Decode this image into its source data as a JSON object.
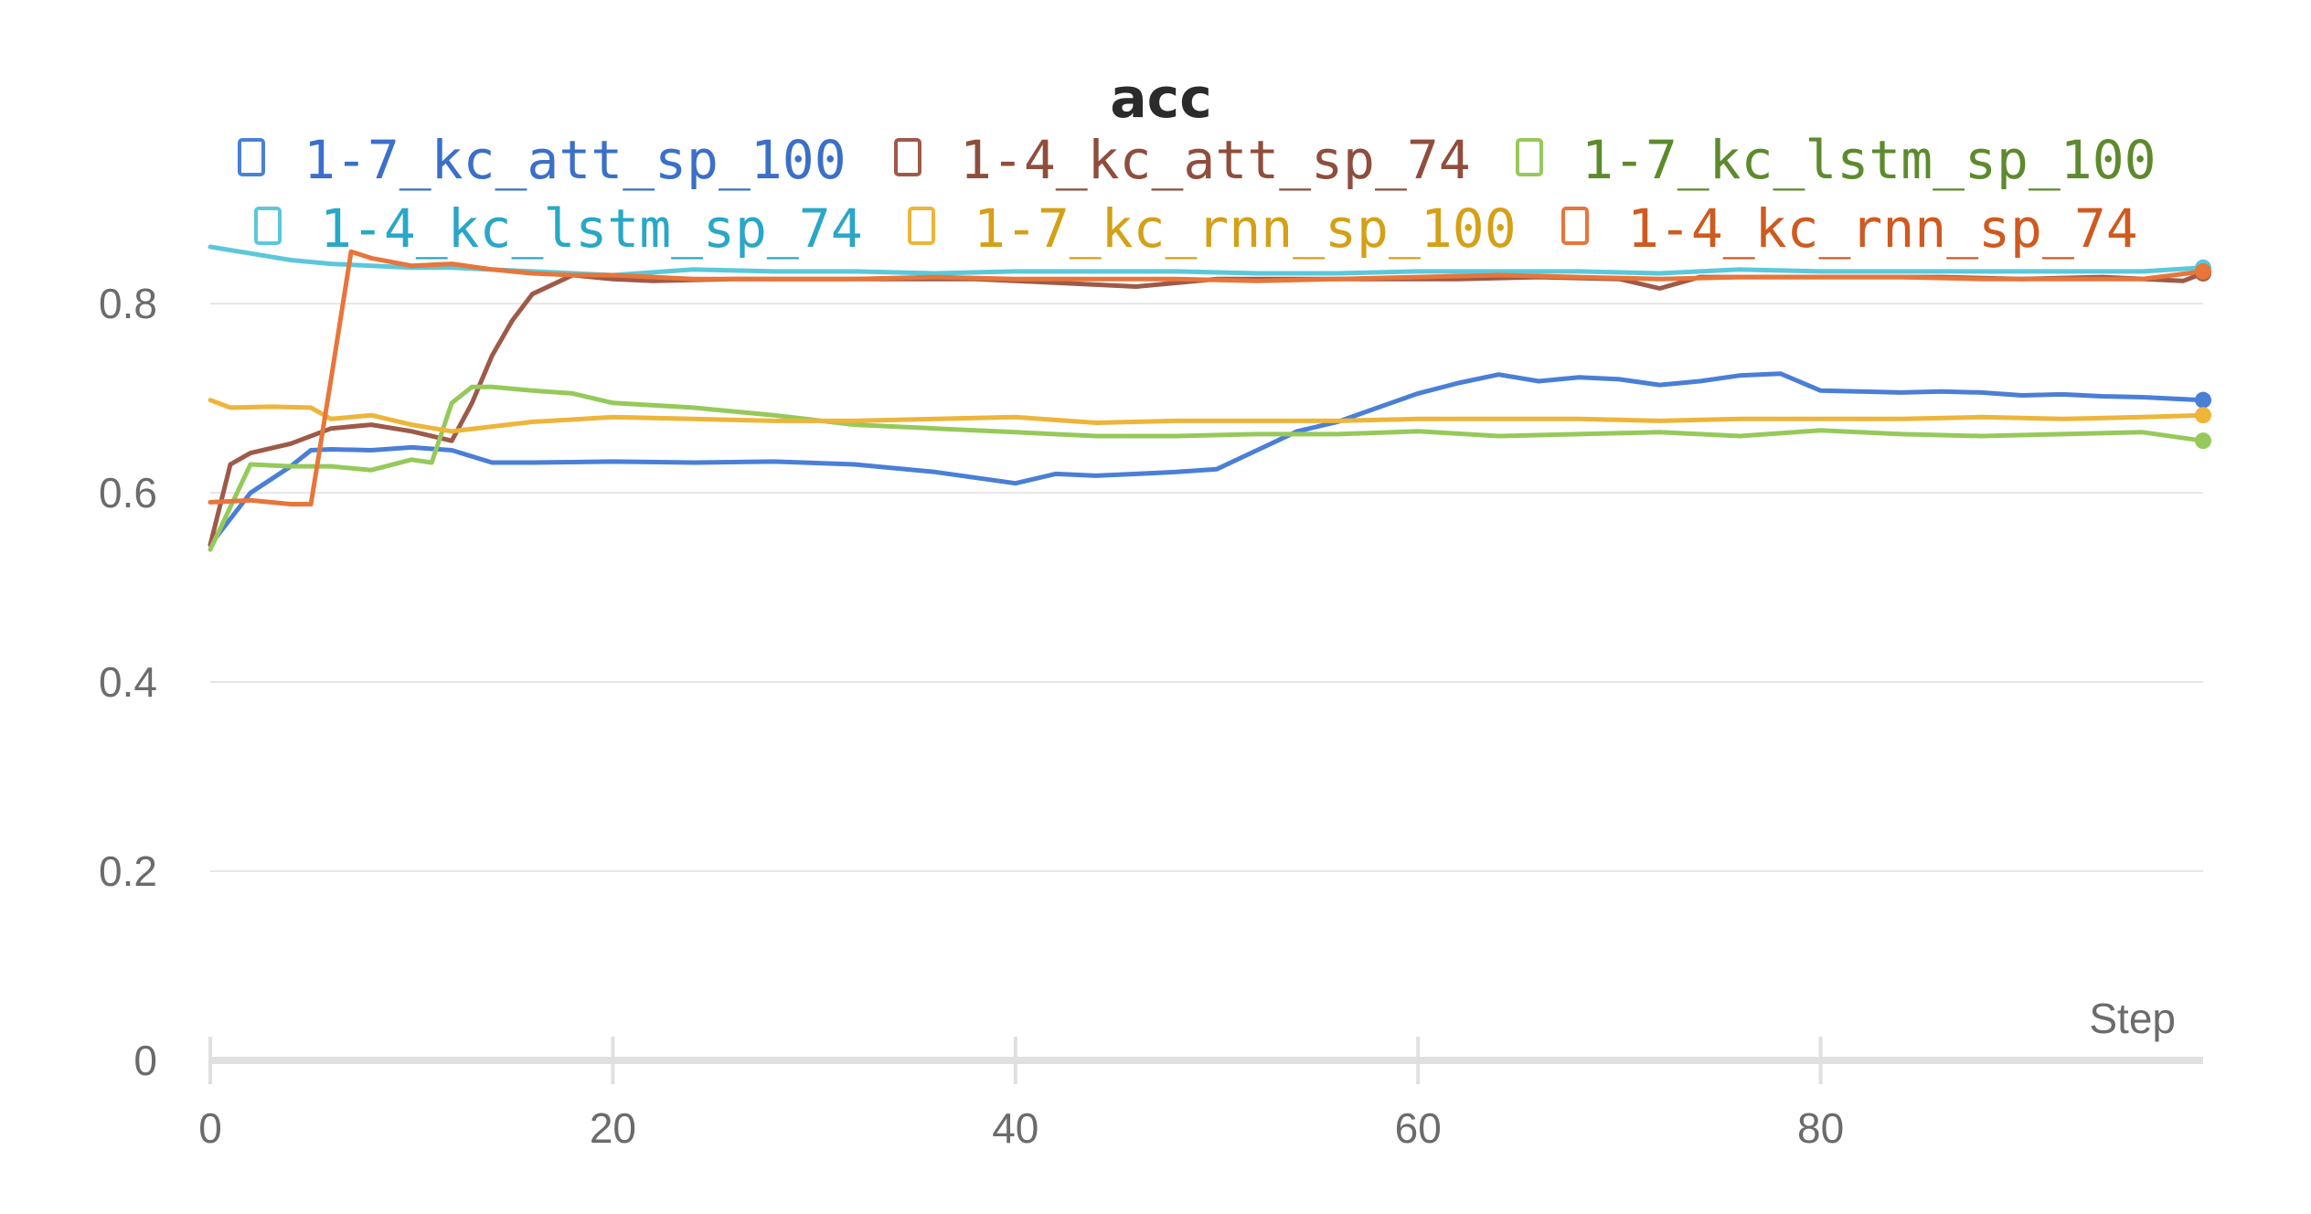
{
  "chart_data": {
    "type": "line",
    "title": "acc",
    "xlabel": "Step",
    "ylabel": "",
    "xlim": [
      0,
      99
    ],
    "ylim": [
      0,
      0.86
    ],
    "x_ticks": [
      0,
      20,
      40,
      60,
      80
    ],
    "x_tick_labels": [
      "0",
      "20",
      "40",
      "60",
      "80"
    ],
    "y_ticks": [
      0,
      0.2,
      0.4,
      0.6,
      0.8
    ],
    "y_tick_labels": [
      "0",
      "0.2",
      "0.4",
      "0.6",
      "0.8"
    ],
    "grid": true,
    "legend_position": "top",
    "series": [
      {
        "name": "1-7_kc_att_sp_100",
        "color": "#4a7fd6",
        "text_color": "#3b6fc9",
        "x": [
          0,
          2,
          4,
          5,
          6,
          8,
          10,
          12,
          14,
          16,
          20,
          24,
          28,
          32,
          36,
          40,
          42,
          44,
          46,
          48,
          50,
          52,
          54,
          56,
          58,
          60,
          62,
          64,
          66,
          68,
          70,
          72,
          74,
          76,
          78,
          80,
          82,
          84,
          86,
          88,
          90,
          92,
          94,
          96,
          99
        ],
        "values": [
          0.545,
          0.6,
          0.628,
          0.645,
          0.646,
          0.645,
          0.648,
          0.645,
          0.632,
          0.632,
          0.633,
          0.632,
          0.633,
          0.63,
          0.622,
          0.61,
          0.62,
          0.618,
          0.62,
          0.622,
          0.625,
          0.645,
          0.665,
          0.675,
          0.69,
          0.705,
          0.716,
          0.725,
          0.718,
          0.722,
          0.72,
          0.714,
          0.718,
          0.724,
          0.726,
          0.708,
          0.707,
          0.706,
          0.707,
          0.706,
          0.703,
          0.704,
          0.702,
          0.701,
          0.698
        ]
      },
      {
        "name": "1-4_kc_att_sp_74",
        "color": "#9e5a48",
        "text_color": "#8f4e3d",
        "x": [
          0,
          1,
          2,
          4,
          6,
          8,
          10,
          12,
          13,
          14,
          15,
          16,
          18,
          20,
          22,
          26,
          30,
          34,
          38,
          42,
          46,
          50,
          54,
          58,
          62,
          66,
          70,
          72,
          74,
          78,
          82,
          86,
          90,
          94,
          98,
          99
        ],
        "values": [
          0.545,
          0.63,
          0.642,
          0.652,
          0.668,
          0.672,
          0.665,
          0.655,
          0.695,
          0.745,
          0.782,
          0.81,
          0.83,
          0.826,
          0.824,
          0.826,
          0.826,
          0.826,
          0.826,
          0.822,
          0.818,
          0.826,
          0.826,
          0.826,
          0.826,
          0.828,
          0.826,
          0.816,
          0.828,
          0.828,
          0.828,
          0.828,
          0.826,
          0.828,
          0.824,
          0.832
        ]
      },
      {
        "name": "1-7_kc_lstm_sp_100",
        "color": "#96c95a",
        "text_color": "#5e8a2e",
        "x": [
          0,
          2,
          4,
          6,
          8,
          10,
          11,
          12,
          13,
          14,
          16,
          18,
          20,
          24,
          28,
          32,
          36,
          40,
          44,
          48,
          52,
          56,
          60,
          64,
          68,
          72,
          76,
          80,
          84,
          88,
          92,
          96,
          99
        ],
        "values": [
          0.54,
          0.63,
          0.628,
          0.628,
          0.624,
          0.635,
          0.632,
          0.695,
          0.712,
          0.712,
          0.708,
          0.705,
          0.695,
          0.69,
          0.682,
          0.672,
          0.668,
          0.664,
          0.66,
          0.66,
          0.662,
          0.662,
          0.665,
          0.66,
          0.662,
          0.664,
          0.66,
          0.666,
          0.662,
          0.66,
          0.662,
          0.664,
          0.655
        ]
      },
      {
        "name": "1-4_kc_lstm_sp_74",
        "color": "#5bc8da",
        "text_color": "#2aa7c6",
        "x": [
          0,
          2,
          4,
          6,
          8,
          10,
          12,
          16,
          20,
          24,
          28,
          32,
          36,
          40,
          44,
          48,
          52,
          56,
          60,
          64,
          68,
          72,
          76,
          80,
          84,
          88,
          92,
          96,
          99
        ],
        "values": [
          0.86,
          0.853,
          0.846,
          0.842,
          0.84,
          0.838,
          0.838,
          0.834,
          0.83,
          0.836,
          0.834,
          0.834,
          0.832,
          0.834,
          0.834,
          0.834,
          0.832,
          0.832,
          0.834,
          0.834,
          0.834,
          0.832,
          0.836,
          0.834,
          0.834,
          0.834,
          0.834,
          0.834,
          0.838
        ]
      },
      {
        "name": "1-7_kc_rnn_sp_100",
        "color": "#edb53a",
        "text_color": "#d4a017",
        "x": [
          0,
          1,
          3,
          5,
          6,
          8,
          10,
          12,
          16,
          20,
          24,
          28,
          32,
          36,
          40,
          44,
          48,
          52,
          56,
          60,
          64,
          68,
          72,
          76,
          80,
          84,
          88,
          92,
          96,
          99
        ],
        "values": [
          0.698,
          0.69,
          0.691,
          0.69,
          0.678,
          0.682,
          0.672,
          0.665,
          0.675,
          0.68,
          0.678,
          0.676,
          0.676,
          0.678,
          0.68,
          0.674,
          0.676,
          0.676,
          0.676,
          0.678,
          0.678,
          0.678,
          0.676,
          0.678,
          0.678,
          0.678,
          0.68,
          0.678,
          0.68,
          0.682
        ]
      },
      {
        "name": "1-4_kc_rnn_sp_74",
        "color": "#e8753a",
        "text_color": "#cf5a20",
        "x": [
          0,
          2,
          4,
          5,
          6,
          7,
          8,
          10,
          12,
          14,
          16,
          18,
          20,
          24,
          28,
          32,
          36,
          40,
          44,
          48,
          52,
          56,
          60,
          64,
          68,
          72,
          76,
          80,
          84,
          88,
          92,
          96,
          99
        ],
        "values": [
          0.59,
          0.592,
          0.588,
          0.588,
          0.72,
          0.855,
          0.848,
          0.84,
          0.842,
          0.836,
          0.832,
          0.83,
          0.83,
          0.826,
          0.826,
          0.826,
          0.828,
          0.826,
          0.826,
          0.826,
          0.824,
          0.826,
          0.828,
          0.83,
          0.828,
          0.826,
          0.828,
          0.828,
          0.828,
          0.826,
          0.826,
          0.826,
          0.834
        ]
      }
    ]
  }
}
